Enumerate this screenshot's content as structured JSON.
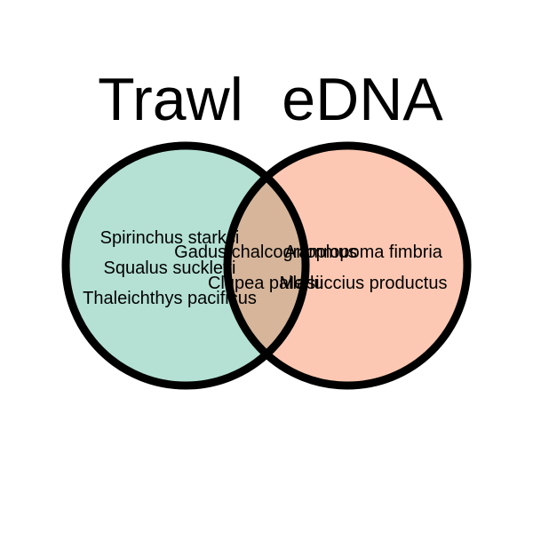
{
  "sets": {
    "left": {
      "title": "Trawl",
      "fill_color": "#b4e1d4",
      "outline_color": "#000000"
    },
    "right": {
      "title": "eDNA",
      "fill_color": "#fcc8b3",
      "outline_color": "#000000"
    },
    "overlap_color": "#d6b59a"
  },
  "regions": {
    "trawl_only": [
      "Spirinchus starksi",
      "Squalus suckleyi",
      "Thaleichthys pacificus"
    ],
    "both": [
      "Gadus chalcogrammus",
      "Clupea pallasii"
    ],
    "edna_only": [
      "Anoplopoma fimbria",
      "Merluccius productus"
    ]
  }
}
